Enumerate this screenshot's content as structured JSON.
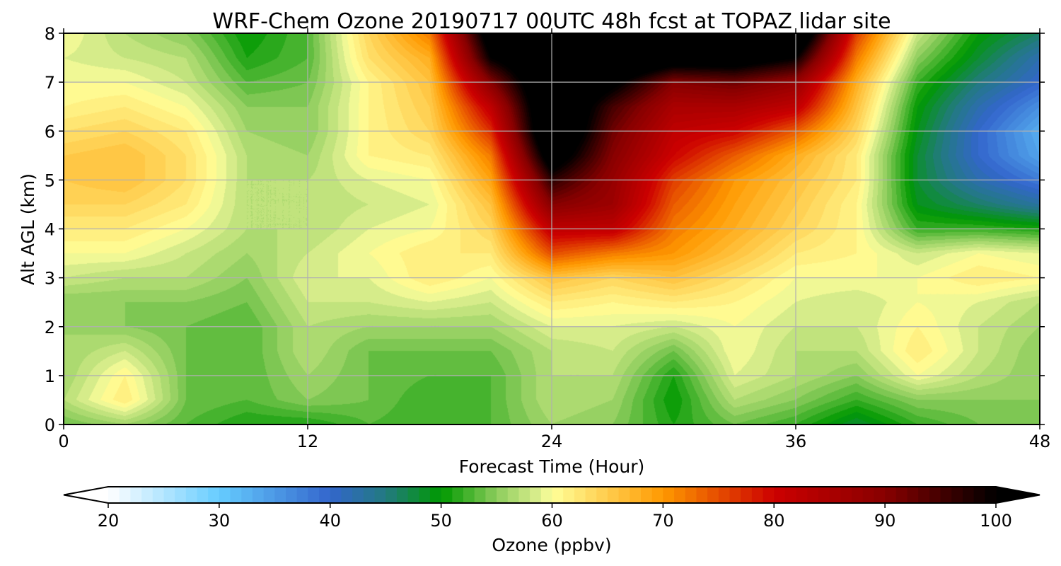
{
  "chart_data": {
    "type": "heatmap",
    "subtype": "filled-contour",
    "title": "WRF-Chem Ozone 20190717 00UTC 48h fcst at TOPAZ lidar site",
    "xlabel": "Forecast Time (Hour)",
    "ylabel": "Alt AGL (km)",
    "xlim": [
      0,
      48
    ],
    "ylim": [
      0,
      8
    ],
    "xticks": [
      "0",
      "12",
      "24",
      "36",
      "48"
    ],
    "xtick_values": [
      0,
      12,
      24,
      36,
      48
    ],
    "yticks": [
      "0",
      "1",
      "2",
      "3",
      "4",
      "5",
      "6",
      "7",
      "8"
    ],
    "ytick_values": [
      0,
      1,
      2,
      3,
      4,
      5,
      6,
      7,
      8
    ],
    "grid": true,
    "x": [
      0,
      3,
      6,
      9,
      12,
      15,
      18,
      21,
      24,
      27,
      30,
      33,
      36,
      39,
      42,
      45,
      48
    ],
    "y": [
      0,
      0.5,
      1,
      1.5,
      2,
      2.5,
      3,
      3.5,
      4,
      4.5,
      5,
      5.5,
      6,
      6.5,
      7,
      7.5,
      8
    ],
    "z": [
      [
        54,
        57,
        56,
        56,
        56,
        55,
        58,
        60,
        62,
        64,
        65,
        65,
        63,
        61,
        60,
        59,
        60
      ],
      [
        56,
        62,
        61,
        58,
        55,
        55,
        57,
        60,
        62,
        64,
        66,
        66,
        64,
        62,
        60,
        58,
        57
      ],
      [
        53,
        54,
        54,
        54,
        54,
        55,
        57,
        58,
        60,
        62,
        63,
        63,
        62,
        60,
        58,
        57,
        55
      ],
      [
        51,
        53,
        53,
        53,
        53,
        54,
        55,
        56,
        57,
        57,
        57,
        57,
        56,
        55,
        53,
        51,
        50
      ],
      [
        51,
        55,
        56,
        57,
        57,
        58,
        59,
        58,
        57,
        57,
        57,
        56,
        55,
        55,
        54,
        53,
        53
      ],
      [
        53,
        54,
        54,
        54,
        56,
        58,
        59,
        60,
        59,
        58,
        59,
        61,
        61,
        61,
        61,
        63,
        64
      ],
      [
        52,
        52,
        53,
        54,
        56,
        59,
        62,
        62,
        60,
        59,
        60,
        62,
        64,
        65,
        66,
        68,
        72
      ],
      [
        53,
        53,
        53,
        54,
        56,
        58,
        60,
        62,
        64,
        66,
        69,
        72,
        77,
        82,
        90,
        100,
        105
      ],
      [
        56,
        57,
        57,
        57,
        59,
        62,
        66,
        75,
        82,
        90,
        97,
        105,
        110,
        110,
        110,
        110,
        110
      ],
      [
        55,
        56,
        57,
        58,
        59,
        61,
        64,
        72,
        82,
        87,
        88,
        90,
        92,
        95,
        102,
        110,
        110
      ],
      [
        51,
        50,
        51,
        54,
        58,
        62,
        66,
        70,
        72,
        74,
        76,
        80,
        82,
        85,
        90,
        105,
        110
      ],
      [
        54,
        57,
        59,
        60,
        60,
        61,
        63,
        66,
        68,
        69,
        70,
        74,
        80,
        85,
        92,
        105,
        110
      ],
      [
        52,
        55,
        57,
        57,
        58,
        59,
        60,
        62,
        64,
        65,
        66,
        68,
        74,
        82,
        88,
        100,
        110
      ],
      [
        48,
        52,
        55,
        57,
        58,
        58,
        60,
        61,
        61,
        61,
        62,
        62,
        64,
        66,
        68,
        72,
        76
      ],
      [
        52,
        55,
        60,
        62,
        61,
        60,
        60,
        58,
        52,
        49,
        48,
        48,
        49,
        50,
        52,
        55,
        58
      ],
      [
        54,
        55,
        57,
        58,
        58,
        59,
        62,
        60,
        52,
        46,
        42,
        40,
        40,
        42,
        45,
        48,
        50
      ],
      [
        55,
        55,
        55,
        55,
        56,
        57,
        61,
        59,
        51,
        43,
        38,
        34,
        33,
        36,
        40,
        42,
        46
      ]
    ],
    "colorbar": {
      "label": "Ozone  (ppbv)",
      "min": 20,
      "max": 100,
      "step": 1,
      "extend": "both",
      "ticks": [
        "20",
        "30",
        "40",
        "50",
        "60",
        "70",
        "80",
        "90",
        "100"
      ],
      "tick_values": [
        20,
        30,
        40,
        50,
        60,
        70,
        80,
        90,
        100
      ]
    },
    "colormap": [
      [
        20,
        "#ffffff"
      ],
      [
        30,
        "#66ccff"
      ],
      [
        40,
        "#3366cc"
      ],
      [
        45,
        "#227a80"
      ],
      [
        50,
        "#009900"
      ],
      [
        55,
        "#8ccc5c"
      ],
      [
        59,
        "#e0f090"
      ],
      [
        60,
        "#ffff99"
      ],
      [
        70,
        "#ff9900"
      ],
      [
        80,
        "#cc0000"
      ],
      [
        90,
        "#880000"
      ],
      [
        100,
        "#000000"
      ]
    ]
  }
}
